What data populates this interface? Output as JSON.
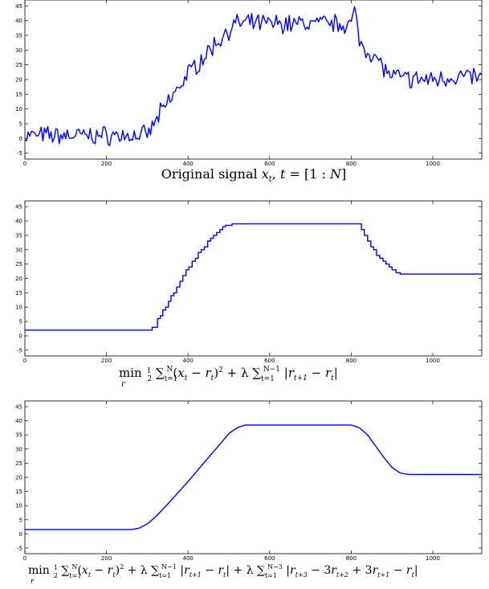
{
  "chart_data": [
    {
      "type": "line",
      "title": "",
      "caption": "Original signal x_t, t = [1 : N]",
      "xlim": [
        0,
        1120
      ],
      "ylim": [
        -7,
        47
      ],
      "xticks": [
        0,
        200,
        400,
        600,
        800,
        1000
      ],
      "yticks": [
        -5,
        0,
        5,
        10,
        15,
        20,
        25,
        30,
        35,
        40,
        45
      ],
      "grid": false,
      "legend": "none",
      "series": [
        {
          "color": "#0000ff",
          "style": "noisy",
          "noise_amplitude": 2.5,
          "x": [
            0,
            300,
            330,
            400,
            500,
            520,
            800,
            810,
            820,
            840,
            870,
            890,
            900,
            950,
            1000,
            1050,
            1100,
            1120
          ],
          "y": [
            1,
            1,
            8,
            22,
            37,
            39,
            39,
            43,
            33,
            30,
            26,
            22,
            21,
            20,
            20,
            21,
            21,
            20
          ]
        }
      ]
    },
    {
      "type": "line",
      "title": "",
      "caption": "min_r 1/2 Σ_{t=1}^{N} (x_t − r_t)^2 + λ Σ_{t=1}^{N−1} |r_{t+1} − r_t|",
      "xlim": [
        0,
        1120
      ],
      "ylim": [
        -7,
        47
      ],
      "xticks": [
        0,
        200,
        400,
        600,
        800,
        1000
      ],
      "yticks": [
        -5,
        0,
        5,
        10,
        15,
        20,
        25,
        30,
        35,
        40,
        45
      ],
      "grid": false,
      "legend": "none",
      "series": [
        {
          "color": "#0000ff",
          "style": "piecewise-constant",
          "x": [
            0,
            308,
            312,
            320,
            325,
            332,
            338,
            345,
            352,
            358,
            365,
            372,
            380,
            387,
            395,
            402,
            410,
            418,
            425,
            432,
            440,
            448,
            455,
            462,
            470,
            478,
            485,
            492,
            500,
            508,
            515,
            525,
            815,
            825,
            832,
            840,
            848,
            855,
            862,
            870,
            878,
            885,
            893,
            900,
            910,
            920,
            935,
            1120
          ],
          "y": [
            2,
            2,
            3,
            3,
            6,
            7,
            9,
            10,
            12,
            14,
            15,
            17,
            19,
            21,
            23,
            24,
            26,
            27,
            29,
            30,
            31,
            33,
            34,
            35,
            36,
            37,
            38,
            38.5,
            38.5,
            39,
            39,
            39,
            39,
            37,
            35,
            33,
            31,
            30,
            28,
            27,
            26,
            25,
            24,
            23,
            22,
            21.5,
            21.5,
            21.5
          ]
        }
      ]
    },
    {
      "type": "line",
      "title": "",
      "caption": "min_r 1/2 Σ_{t=1}^{N} (x_t − r_t)^2 + λ Σ_{t=1}^{N−1} |r_{t+1} − r_t| + λ Σ_{t=1}^{N−3} |r_{t+3} − 3r_{t+2} + 3r_{t+1} − r_t|",
      "xlim": [
        0,
        1120
      ],
      "ylim": [
        -7,
        47
      ],
      "xticks": [
        0,
        200,
        400,
        600,
        800,
        1000
      ],
      "yticks": [
        -5,
        0,
        5,
        10,
        15,
        20,
        25,
        30,
        35,
        40,
        45
      ],
      "grid": false,
      "legend": "none",
      "series": [
        {
          "color": "#0000ff",
          "style": "smooth",
          "x": [
            0,
            260,
            280,
            300,
            320,
            350,
            400,
            450,
            480,
            500,
            520,
            540,
            800,
            820,
            840,
            860,
            880,
            900,
            920,
            940,
            960,
            1120
          ],
          "y": [
            1.5,
            1.5,
            2,
            3.5,
            6,
            10.5,
            18.5,
            27,
            32,
            35.5,
            37.5,
            38.5,
            38.5,
            37.5,
            35,
            31,
            27,
            23.5,
            21.5,
            21,
            21,
            21
          ]
        }
      ]
    }
  ]
}
